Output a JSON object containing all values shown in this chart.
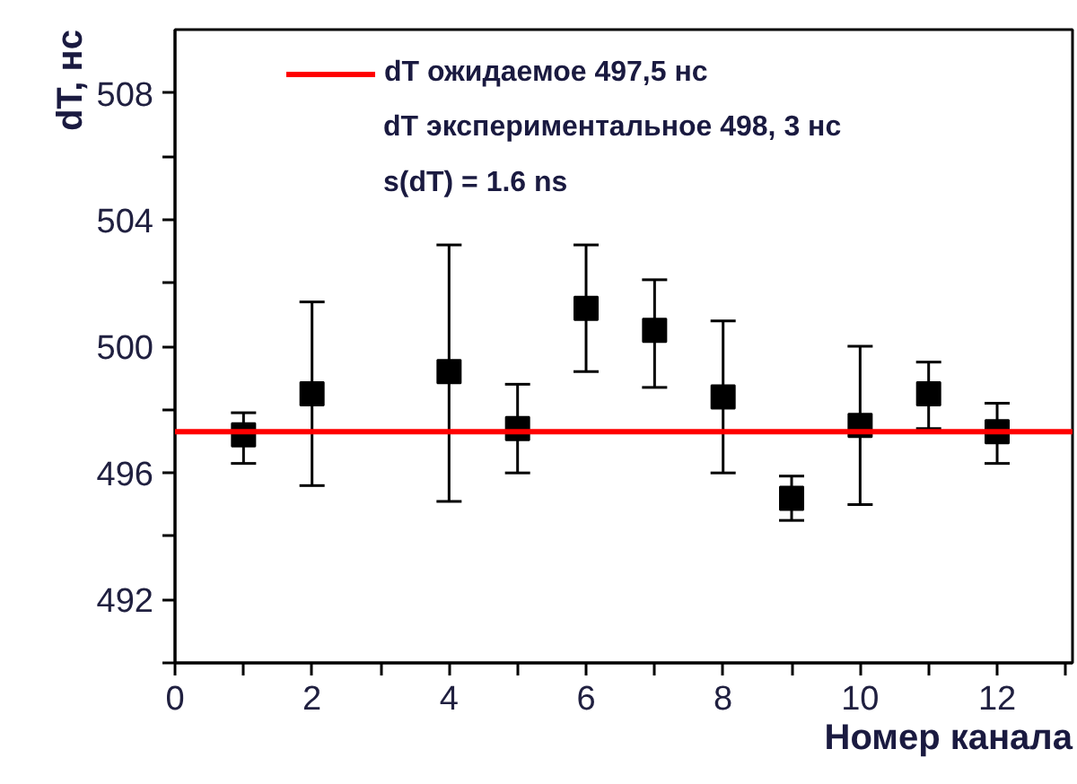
{
  "chart_data": {
    "type": "scatter",
    "xlabel": "Номер канала",
    "ylabel": "dT, нс",
    "x": [
      1,
      2,
      4,
      5,
      6,
      7,
      8,
      9,
      10,
      11,
      12
    ],
    "series": [
      {
        "color": "#000000",
        "values": [
          497.2,
          498.5,
          499.2,
          497.4,
          501.2,
          500.5,
          498.4,
          495.2,
          497.5,
          498.5,
          497.3
        ],
        "errors": [
          [
            496.3,
            497.9
          ],
          [
            495.6,
            501.4
          ],
          [
            495.1,
            503.2
          ],
          [
            496.0,
            498.8
          ],
          [
            499.2,
            503.2
          ],
          [
            498.7,
            502.1
          ],
          [
            496.0,
            500.8
          ],
          [
            494.5,
            495.9
          ],
          [
            495.0,
            500.0
          ],
          [
            497.4,
            499.5
          ],
          [
            496.3,
            498.2
          ]
        ]
      }
    ],
    "ref_lines": [
      {
        "axis": "y",
        "value": 497.3,
        "label": "dT ожидаемое 497,5 нс",
        "color": "#ff0000"
      }
    ],
    "annotations": [
      "dT экспериментальное 498, 3 нс",
      "s(dT) = 1.6 ns"
    ],
    "legend": "top",
    "xlim": [
      0,
      13.1
    ],
    "xticks": [
      0,
      {
        "value": 1,
        "label": null
      },
      2,
      {
        "value": 3,
        "label": null
      },
      4,
      {
        "value": 5,
        "label": null
      },
      6,
      {
        "value": 7,
        "label": null
      },
      8,
      {
        "value": 9,
        "label": null
      },
      10,
      {
        "value": 11,
        "label": null
      },
      12,
      {
        "value": 13,
        "label": null
      }
    ],
    "ylim": [
      490,
      510
    ],
    "yticks": [
      {
        "value": 490,
        "label": null
      },
      492,
      {
        "value": 494,
        "label": null
      },
      496,
      {
        "value": 498,
        "label": null
      },
      500,
      {
        "value": 502,
        "label": null
      },
      504,
      {
        "value": 506,
        "label": null
      },
      508
    ],
    "grid": false,
    "marker": "square"
  }
}
